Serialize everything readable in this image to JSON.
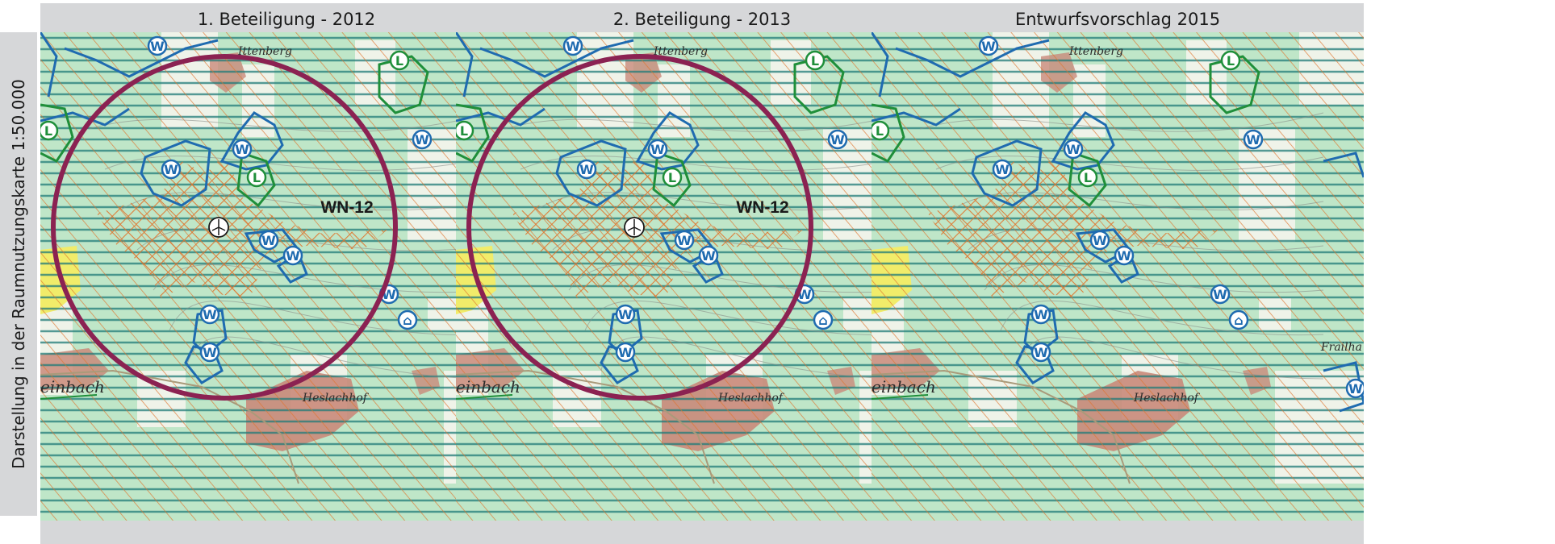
{
  "side_label": "Darstellung in der Raumnutzungskarte 1:50.000",
  "panels": [
    {
      "title": "1. Beteiligung - 2012",
      "area_label": "WN-12",
      "show_circle": true,
      "show_turbine": true
    },
    {
      "title": "2. Beteiligung - 2013",
      "area_label": "WN-12",
      "show_circle": true,
      "show_turbine": true
    },
    {
      "title": "Entwurfsvorschlag 2015",
      "area_label": "",
      "show_circle": false,
      "show_turbine": false
    }
  ],
  "places": {
    "north": "Ittenberg",
    "southeast": "Heslachhof",
    "west": "einbach",
    "east_edge": "Frailha"
  },
  "symbols": {
    "water": "W",
    "landscape": "L",
    "monument": "⌂"
  },
  "colors": {
    "circle": "#8b2252",
    "water_boundary": "#1f6bb0",
    "landscape_boundary": "#1f8f3a",
    "hatch_horizontal": "#1f7a78",
    "hatch_diagonal": "#e0742c",
    "background_green": "#bfe6c8",
    "settlement": "#c98a7a",
    "yellow_area": "#f1ec6a",
    "title_bar": "#d6d7d9"
  }
}
